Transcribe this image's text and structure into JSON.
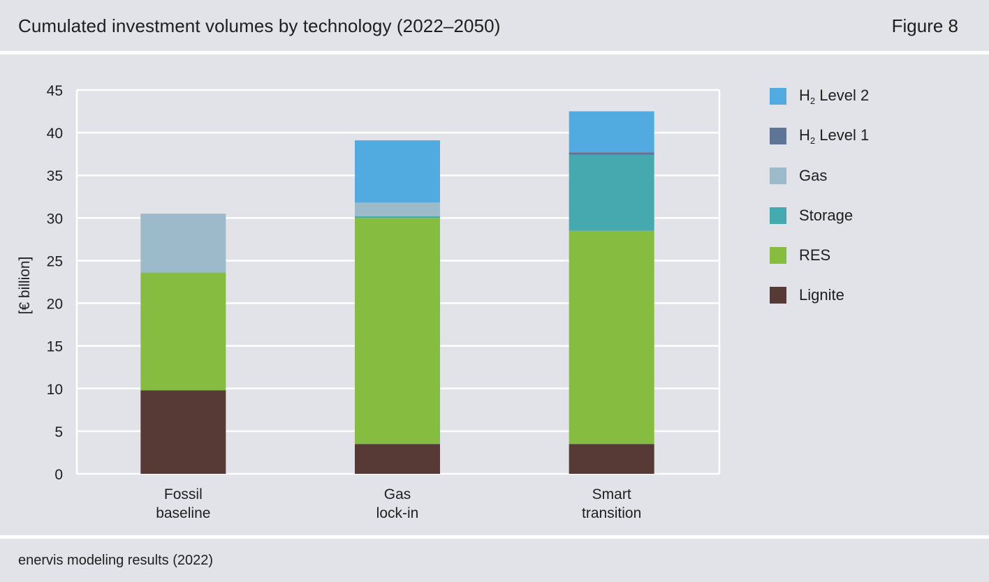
{
  "header": {
    "title": "Cumulated investment volumes by technology (2022–2050)",
    "figure_label": "Figure 8"
  },
  "footer": {
    "source": "enervis modeling results (2022)"
  },
  "chart_data": {
    "type": "bar",
    "stacked": true,
    "ylabel": "[€ billion]",
    "xlabel": "",
    "ylim": [
      0,
      45
    ],
    "yticks": [
      0,
      5,
      10,
      15,
      20,
      25,
      30,
      35,
      40,
      45
    ],
    "grid": true,
    "legend_position": "right",
    "categories": [
      [
        "Fossil",
        "baseline"
      ],
      [
        "Gas",
        "lock-in"
      ],
      [
        "Smart",
        "transition"
      ]
    ],
    "series": [
      {
        "name": "Lignite",
        "color": "#573a36",
        "values": [
          9.8,
          3.5,
          3.5
        ]
      },
      {
        "name": "RES",
        "color": "#86bd40",
        "values": [
          13.8,
          26.5,
          25.0
        ]
      },
      {
        "name": "Storage",
        "color": "#46a9b0",
        "values": [
          0.0,
          0.2,
          8.9
        ]
      },
      {
        "name": "Gas",
        "color": "#9dbacb",
        "values": [
          6.9,
          1.6,
          0.0
        ]
      },
      {
        "name": "H2 Level 1",
        "color": "#5f7597",
        "values": [
          0.0,
          0.0,
          0.3
        ]
      },
      {
        "name": "H2 Level 2",
        "color": "#52abe0",
        "values": [
          0.0,
          7.3,
          4.8
        ]
      }
    ],
    "legend": [
      {
        "prefix": "H",
        "sub": "2",
        "suffix": " Level 2",
        "color": "#52abe0"
      },
      {
        "prefix": "H",
        "sub": "2",
        "suffix": " Level 1",
        "color": "#5f7597"
      },
      {
        "prefix": "Gas",
        "sub": "",
        "suffix": "",
        "color": "#9dbacb"
      },
      {
        "prefix": "Storage",
        "sub": "",
        "suffix": "",
        "color": "#46a9b0"
      },
      {
        "prefix": "RES",
        "sub": "",
        "suffix": "",
        "color": "#86bd40"
      },
      {
        "prefix": "Lignite",
        "sub": "",
        "suffix": "",
        "color": "#573a36"
      }
    ]
  }
}
